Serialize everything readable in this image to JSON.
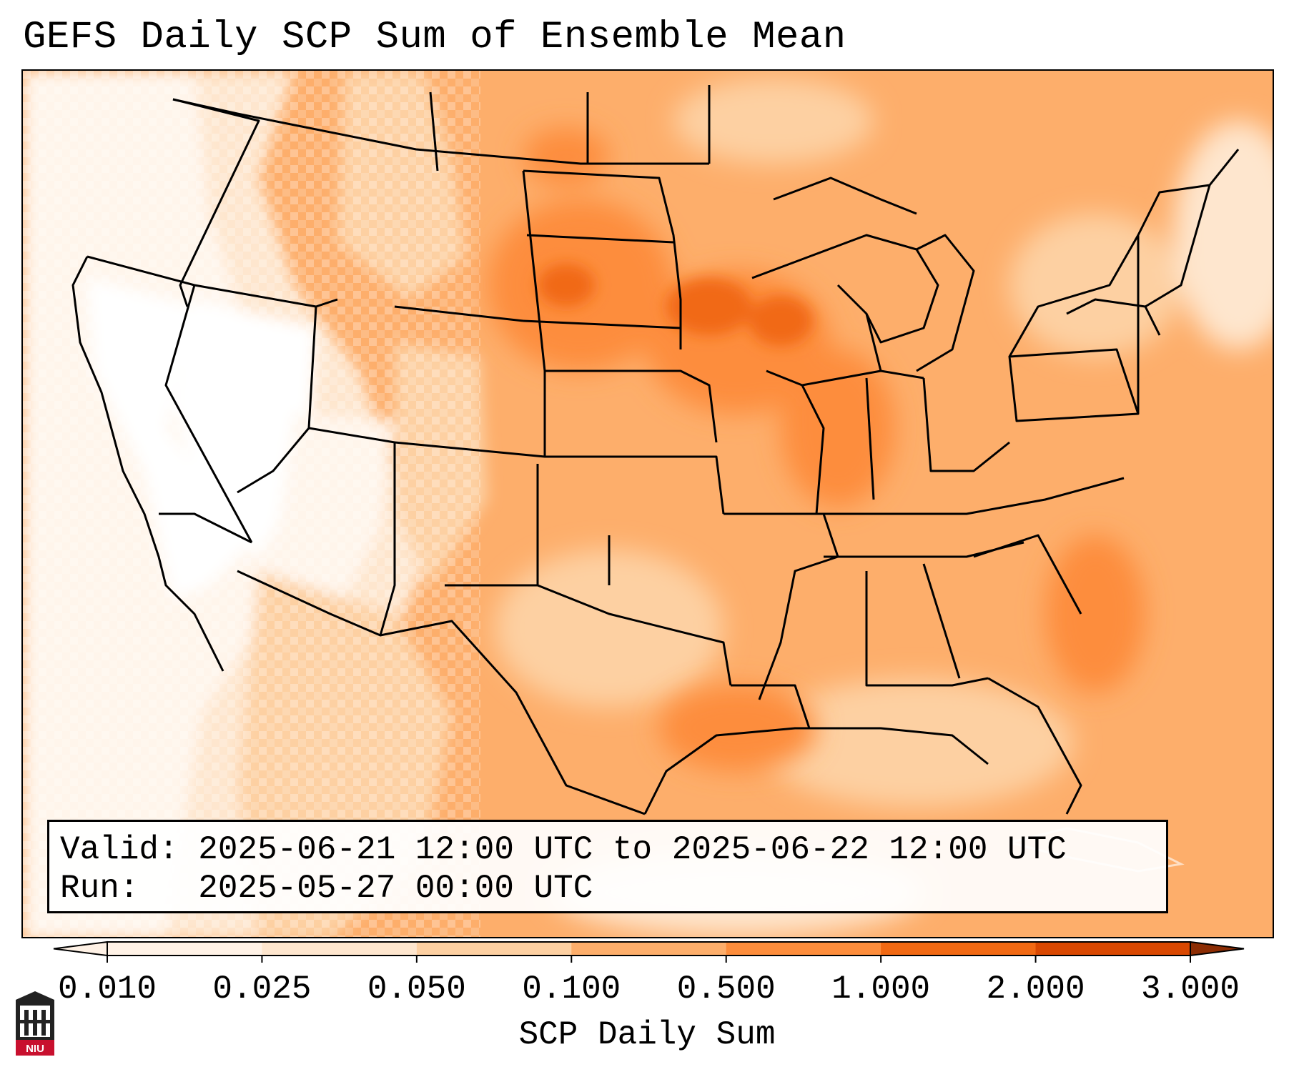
{
  "title": "GEFS Daily SCP Sum of Ensemble Mean",
  "info": {
    "valid_label": "Valid:",
    "valid_value": "2025-06-21 12:00 UTC to 2025-06-22 12:00 UTC",
    "run_label": "Run:",
    "run_value": "2025-05-27 00:00 UTC"
  },
  "colorbar": {
    "label": "SCP Daily Sum",
    "ticks": [
      "0.010",
      "0.025",
      "0.050",
      "0.100",
      "0.500",
      "1.000",
      "2.000",
      "3.000"
    ],
    "colors": [
      "#fff2e6",
      "#fee6ce",
      "#fdd0a2",
      "#fdae6b",
      "#fd8d3c",
      "#f16913",
      "#d94801",
      "#8c2d04"
    ],
    "extend": "both"
  },
  "map": {
    "domain": "Continental United States",
    "palette": {
      "below_min": "#ffffff",
      "very_low": "#fff5eb",
      "low": "#fee6ce",
      "moderate": "#fdd0a2",
      "elevated": "#fdae6b",
      "high": "#fd8d3c",
      "very_high": "#f16913"
    },
    "regions": [
      {
        "name": "Pacific Coast",
        "level": "below_min"
      },
      {
        "name": "Great Basin",
        "level": "very_low"
      },
      {
        "name": "Northern Rockies",
        "level": "moderate"
      },
      {
        "name": "Northern Plains",
        "level": "high"
      },
      {
        "name": "Upper Midwest",
        "level": "very_high"
      },
      {
        "name": "Southern Plains",
        "level": "elevated"
      },
      {
        "name": "Southeast",
        "level": "elevated"
      },
      {
        "name": "Gulf of Mexico",
        "level": "elevated"
      },
      {
        "name": "Western Atlantic",
        "level": "elevated"
      }
    ]
  },
  "logo": {
    "text": "NIU"
  }
}
